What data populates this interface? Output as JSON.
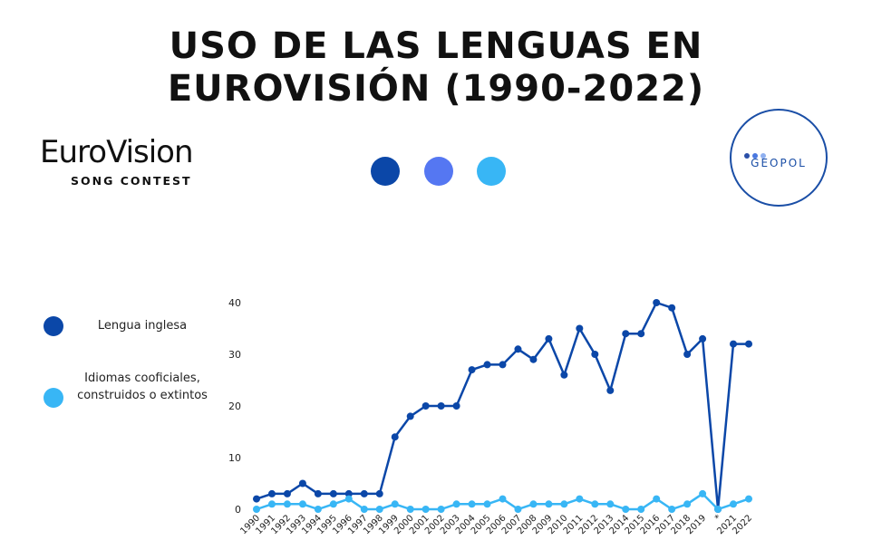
{
  "header": {
    "title_line1": "USO DE LAS LENGUAS EN",
    "title_line2": "EUROVISIÓN (1990-2022)"
  },
  "logos": {
    "left": {
      "wordmark": "EuroVision",
      "subtitle": "SONG CONTEST",
      "dot_colors": [],
      "icon": "eurovision-heart-logo"
    },
    "right": {
      "wordmark": "GEOPOL",
      "dot_colors": [
        "#2a4fa8",
        "#4a78e0",
        "#8fb0f0"
      ],
      "icon": "geopol-circle-logo"
    }
  },
  "palette": {
    "dot1": "#0b47a8",
    "dot2": "#5577f2",
    "dot3": "#38b6f5"
  },
  "legend": {
    "items": [
      {
        "label": "Lengua inglesa",
        "color": "#0b47a8"
      },
      {
        "label": "Idiomas cooficiales, construidos o extintos",
        "color": "#38b6f5"
      }
    ]
  },
  "chart_data": {
    "type": "line",
    "x": [
      "1990",
      "1991",
      "1992",
      "1993",
      "1994",
      "1995",
      "1996",
      "1997",
      "1998",
      "1999",
      "2000",
      "2001",
      "2002",
      "2003",
      "2004",
      "2005",
      "2006",
      "2007",
      "2008",
      "2009",
      "2010",
      "2011",
      "2012",
      "2013",
      "2014",
      "2015",
      "2016",
      "2017",
      "2018",
      "2019",
      "*",
      "2021",
      "2022"
    ],
    "series": [
      {
        "name": "Lengua inglesa",
        "color": "#0b47a8",
        "values": [
          2,
          3,
          3,
          5,
          3,
          3,
          3,
          3,
          3,
          14,
          18,
          20,
          20,
          20,
          27,
          28,
          28,
          31,
          29,
          33,
          26,
          35,
          30,
          23,
          34,
          34,
          40,
          39,
          30,
          33,
          0,
          32,
          32
        ]
      },
      {
        "name": "Idiomas cooficiales, construidos o extintos",
        "color": "#38b6f5",
        "values": [
          0,
          1,
          1,
          1,
          0,
          1,
          2,
          0,
          0,
          1,
          0,
          0,
          0,
          1,
          1,
          1,
          2,
          0,
          1,
          1,
          1,
          2,
          1,
          1,
          0,
          0,
          2,
          0,
          1,
          3,
          0,
          1,
          2
        ]
      }
    ],
    "y_ticks": [
      0,
      10,
      20,
      30,
      40
    ],
    "ylim": [
      0,
      40
    ],
    "grid": false,
    "xlabel": "",
    "ylabel": ""
  }
}
